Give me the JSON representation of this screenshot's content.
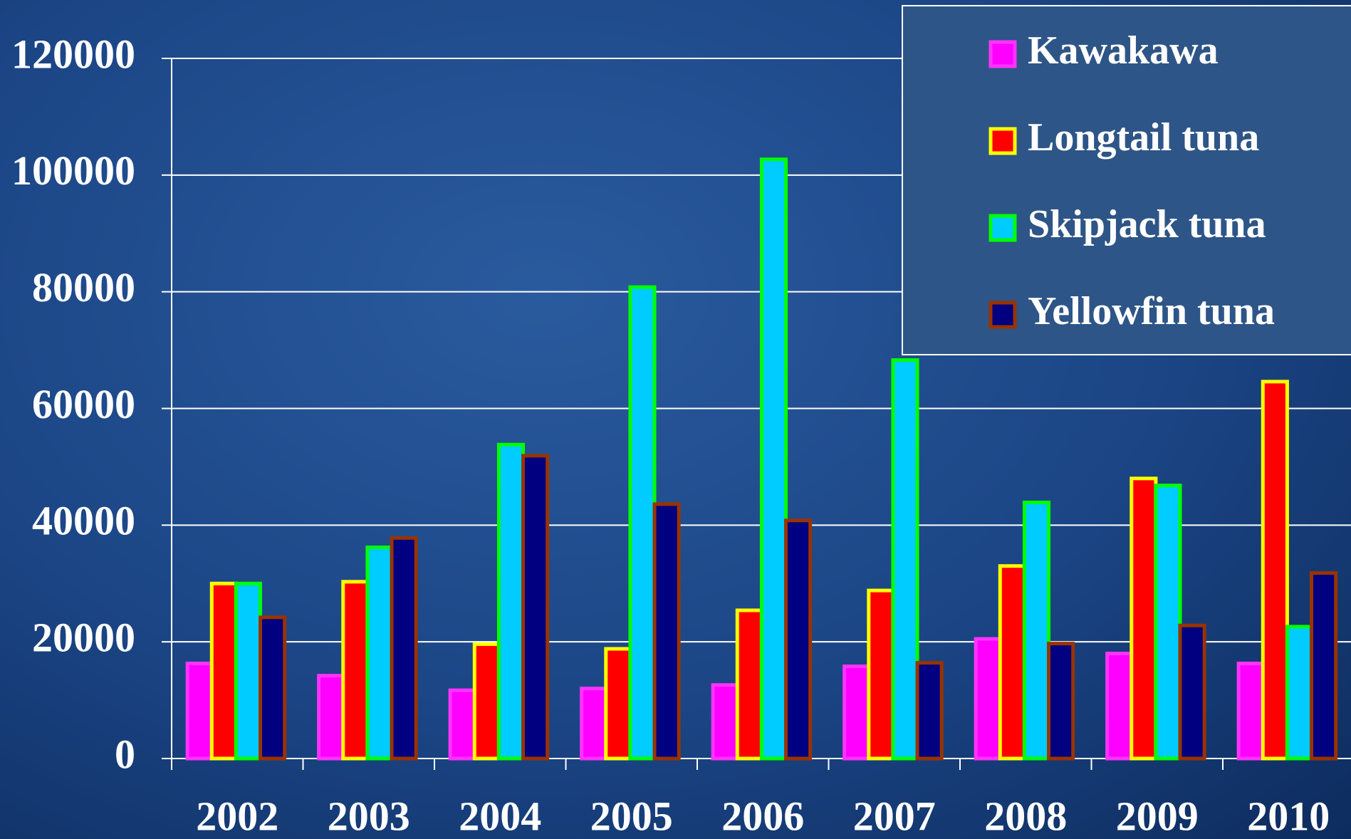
{
  "chart_data": {
    "type": "bar",
    "categories": [
      "2002",
      "2003",
      "2004",
      "2005",
      "2006",
      "2007",
      "2008",
      "2009",
      "2010"
    ],
    "series": [
      {
        "name": "Kawakawa",
        "color": "#ff00ff",
        "edgecolor": "#ff33ff",
        "values": [
          16300,
          14200,
          11700,
          12000,
          12600,
          15800,
          20500,
          18000,
          16300
        ]
      },
      {
        "name": "Longtail tuna",
        "color": "#ff0000",
        "edgecolor": "#ffff00",
        "values": [
          30000,
          30300,
          19600,
          18800,
          25400,
          28800,
          33000,
          48000,
          64600
        ]
      },
      {
        "name": "Skipjack tuna",
        "color": "#00ccff",
        "edgecolor": "#00ff00",
        "values": [
          30000,
          36200,
          53800,
          80800,
          102700,
          68300,
          43900,
          46800,
          22600
        ]
      },
      {
        "name": "Yellowfin tuna",
        "color": "#000080",
        "edgecolor": "#993300",
        "values": [
          24200,
          37800,
          51900,
          43600,
          40800,
          16400,
          19700,
          22800,
          31800
        ]
      }
    ],
    "ylim": [
      0,
      120000
    ],
    "yticks": [
      0,
      20000,
      40000,
      60000,
      80000,
      100000,
      120000
    ],
    "grid": true,
    "legend": "upper right"
  }
}
